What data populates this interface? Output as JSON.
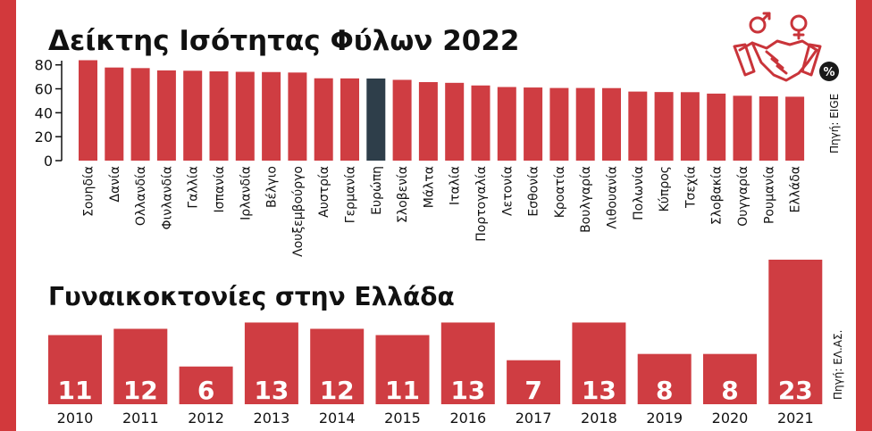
{
  "colors": {
    "frame": "#d2393c",
    "bar": "#cf3d42",
    "highlight": "#2e3e4a",
    "icon": "#c9343a"
  },
  "icon": "handshake-gender-icon",
  "chart_data": [
    {
      "type": "bar",
      "title": "Δείκτης Ισότητας Φύλων 2022",
      "unit_badge": "%",
      "source": "Πηγή: EIGE",
      "ylim": [
        0,
        85
      ],
      "yticks": [
        0,
        20,
        40,
        60,
        80
      ],
      "highlight_category": "Ευρώπη",
      "categories": [
        "Σουηδία",
        "Δανία",
        "Ολλανδία",
        "Φινλανδία",
        "Γαλλία",
        "Ισπανία",
        "Ιρλανδία",
        "Βέλγιο",
        "Λουξεμβούργο",
        "Αυστρία",
        "Γερμανία",
        "Ευρώπη",
        "Σλοβενία",
        "Μάλτα",
        "Ιταλία",
        "Πορτογαλία",
        "Λετονία",
        "Εσθονία",
        "Κροατία",
        "Βουλγαρία",
        "Λιθουανία",
        "Πολωνία",
        "Κύπρος",
        "Τσεχία",
        "Σλοβακία",
        "Ουγγαρία",
        "Ρουμανία",
        "Ελλάδα"
      ],
      "values": [
        83.9,
        77.8,
        77.3,
        75.4,
        75.1,
        74.6,
        74.2,
        74.0,
        73.6,
        68.8,
        68.7,
        68.6,
        67.5,
        65.6,
        65.0,
        62.8,
        61.5,
        61.1,
        60.7,
        60.7,
        60.6,
        57.7,
        57.3,
        57.2,
        56.0,
        54.2,
        53.7,
        53.4
      ]
    },
    {
      "type": "bar",
      "title": "Γυναικοκτονίες στην Ελλάδα",
      "source": "Πηγή: ΕΛ.ΑΣ.",
      "ylim": [
        0,
        23
      ],
      "categories": [
        "2010",
        "2011",
        "2012",
        "2013",
        "2014",
        "2015",
        "2016",
        "2017",
        "2018",
        "2019",
        "2020",
        "2021"
      ],
      "values": [
        11,
        12,
        6,
        13,
        12,
        11,
        13,
        7,
        13,
        8,
        8,
        23
      ],
      "labels": [
        "11",
        "12",
        "6",
        "13",
        "12",
        "11",
        "13",
        "7",
        "13",
        "8",
        "8",
        "23"
      ]
    }
  ]
}
